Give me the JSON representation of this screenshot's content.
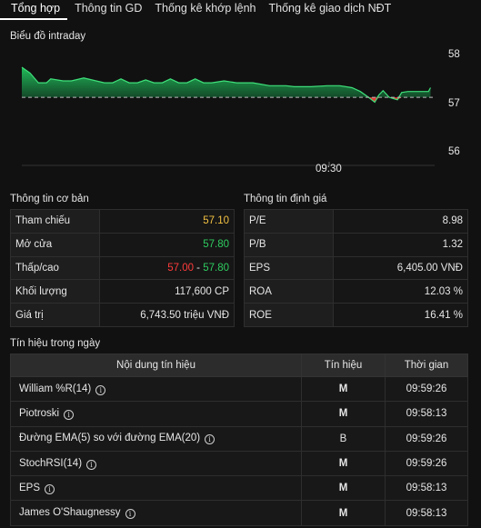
{
  "tabs": [
    "Tổng hợp",
    "Thông tin GD",
    "Thống kê khớp lệnh",
    "Thống kê giao dịch NĐT"
  ],
  "chart_title": "Biểu đồ intraday",
  "chart_data": {
    "type": "area",
    "reference": 57.1,
    "ylim": [
      56,
      58
    ],
    "y_ticks": [
      "58",
      "57",
      "56"
    ],
    "x_tick": "09:30",
    "points": [
      [
        0,
        57.72
      ],
      [
        0.02,
        57.6
      ],
      [
        0.04,
        57.4
      ],
      [
        0.06,
        57.4
      ],
      [
        0.07,
        57.48
      ],
      [
        0.1,
        57.44
      ],
      [
        0.12,
        57.44
      ],
      [
        0.15,
        57.5
      ],
      [
        0.18,
        57.44
      ],
      [
        0.2,
        57.4
      ],
      [
        0.22,
        57.4
      ],
      [
        0.24,
        57.48
      ],
      [
        0.26,
        57.4
      ],
      [
        0.28,
        57.4
      ],
      [
        0.3,
        57.46
      ],
      [
        0.32,
        57.4
      ],
      [
        0.34,
        57.4
      ],
      [
        0.36,
        57.48
      ],
      [
        0.38,
        57.4
      ],
      [
        0.4,
        57.4
      ],
      [
        0.42,
        57.48
      ],
      [
        0.44,
        57.4
      ],
      [
        0.46,
        57.4
      ],
      [
        0.49,
        57.44
      ],
      [
        0.52,
        57.4
      ],
      [
        0.56,
        57.4
      ],
      [
        0.6,
        57.34
      ],
      [
        0.64,
        57.34
      ],
      [
        0.66,
        57.32
      ],
      [
        0.7,
        57.32
      ],
      [
        0.74,
        57.34
      ],
      [
        0.77,
        57.34
      ],
      [
        0.8,
        57.3
      ],
      [
        0.82,
        57.22
      ],
      [
        0.84,
        57.1
      ],
      [
        0.855,
        57.0
      ],
      [
        0.865,
        57.15
      ],
      [
        0.875,
        57.24
      ],
      [
        0.89,
        57.1
      ],
      [
        0.91,
        57.05
      ],
      [
        0.92,
        57.2
      ],
      [
        0.935,
        57.22
      ],
      [
        0.97,
        57.22
      ],
      [
        0.985,
        57.22
      ],
      [
        0.99,
        57.3
      ]
    ]
  },
  "basic_info": {
    "title": "Thông tin cơ bản",
    "rows": [
      {
        "label": "Tham chiếu",
        "value": "57.10",
        "color": "#f3c242"
      },
      {
        "label": "Mở cửa",
        "value": "57.80",
        "color": "#2ecc5f"
      },
      {
        "label": "Thấp/cao",
        "low": "57.00",
        "sep": " - ",
        "high": "57.80"
      },
      {
        "label": "Khối lượng",
        "value": "117,600 CP"
      },
      {
        "label": "Giá trị",
        "value": "6,743.50 triệu VNĐ"
      }
    ]
  },
  "valuation": {
    "title": "Thông tin định giá",
    "rows": [
      {
        "label": "P/E",
        "value": "8.98"
      },
      {
        "label": "P/B",
        "value": "1.32"
      },
      {
        "label": "EPS",
        "value": "6,405.00 VNĐ"
      },
      {
        "label": "ROA",
        "value": "12.03 %"
      },
      {
        "label": "ROE",
        "value": "16.41 %"
      }
    ]
  },
  "signals": {
    "title": "Tín hiệu trong ngày",
    "headers": [
      "Nội dung tín hiệu",
      "Tín hiệu",
      "Thời gian"
    ],
    "rows": [
      {
        "name": "William %R(14)",
        "signal": "M",
        "time": "09:59:26"
      },
      {
        "name": "Piotroski",
        "signal": "M",
        "time": "09:58:13"
      },
      {
        "name": "Đường EMA(5) so với đường EMA(20)",
        "signal": "B",
        "time": "09:59:26"
      },
      {
        "name": "StochRSI(14)",
        "signal": "M",
        "time": "09:59:26"
      },
      {
        "name": "EPS",
        "signal": "M",
        "time": "09:58:13"
      },
      {
        "name": "James O'Shaugnessy",
        "signal": "M",
        "time": "09:58:13"
      }
    ]
  }
}
